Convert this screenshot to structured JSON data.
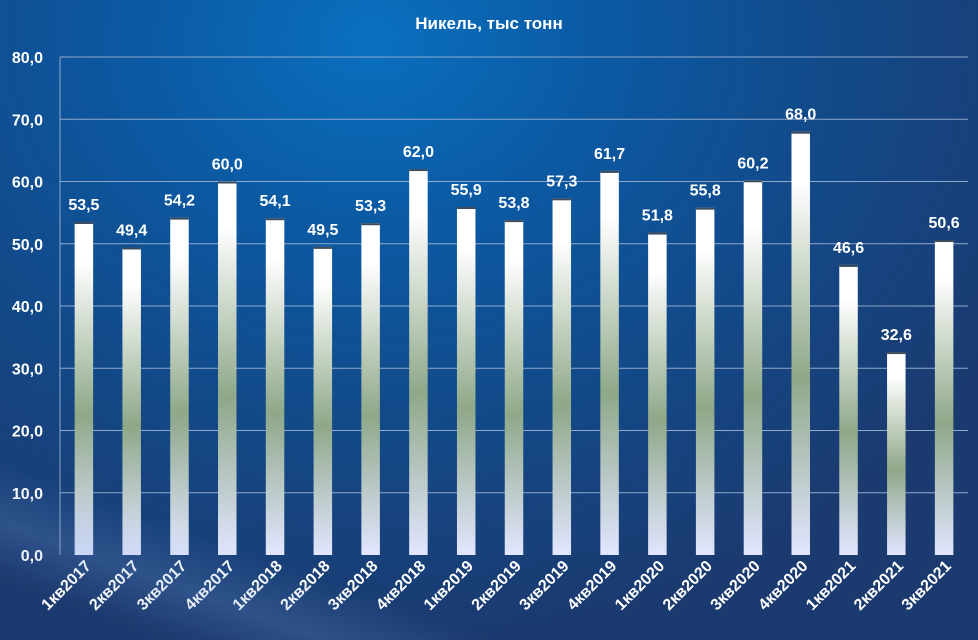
{
  "chart_data": {
    "type": "bar",
    "title": "Никель, тыс тонн",
    "categories": [
      "1кв2017",
      "2кв2017",
      "3кв2017",
      "4кв2017",
      "1кв2018",
      "2кв2018",
      "3кв2018",
      "4кв2018",
      "1кв2019",
      "2кв2019",
      "3кв2019",
      "4кв2019",
      "1кв2020",
      "2кв2020",
      "3кв2020",
      "4кв2020",
      "1кв2021",
      "2кв2021",
      "3кв2021"
    ],
    "values": [
      53.5,
      49.4,
      54.2,
      60.0,
      54.1,
      49.5,
      53.3,
      62.0,
      55.9,
      53.8,
      57.3,
      61.7,
      51.8,
      55.8,
      60.2,
      68.0,
      46.6,
      32.6,
      50.6
    ],
    "value_labels": [
      "53,5",
      "49,4",
      "54,2",
      "60,0",
      "54,1",
      "49,5",
      "53,3",
      "62,0",
      "55,9",
      "53,8",
      "57,3",
      "61,7",
      "51,8",
      "55,8",
      "60,2",
      "68,0",
      "46,6",
      "32,6",
      "50,6"
    ],
    "ylim": [
      0,
      80
    ],
    "yticks": [
      0,
      10,
      20,
      30,
      40,
      50,
      60,
      70,
      80
    ],
    "ytick_labels": [
      "0,0",
      "10,0",
      "20,0",
      "30,0",
      "40,0",
      "50,0",
      "60,0",
      "70,0",
      "80,0"
    ],
    "grid": true,
    "legend": "none",
    "colors": {
      "bar_top": "#ffffff",
      "bar_mid": "#8ea888",
      "bar_bottom": "#e2e6ff",
      "gridline": "#8fa8cc",
      "text": "#ffffff"
    }
  }
}
